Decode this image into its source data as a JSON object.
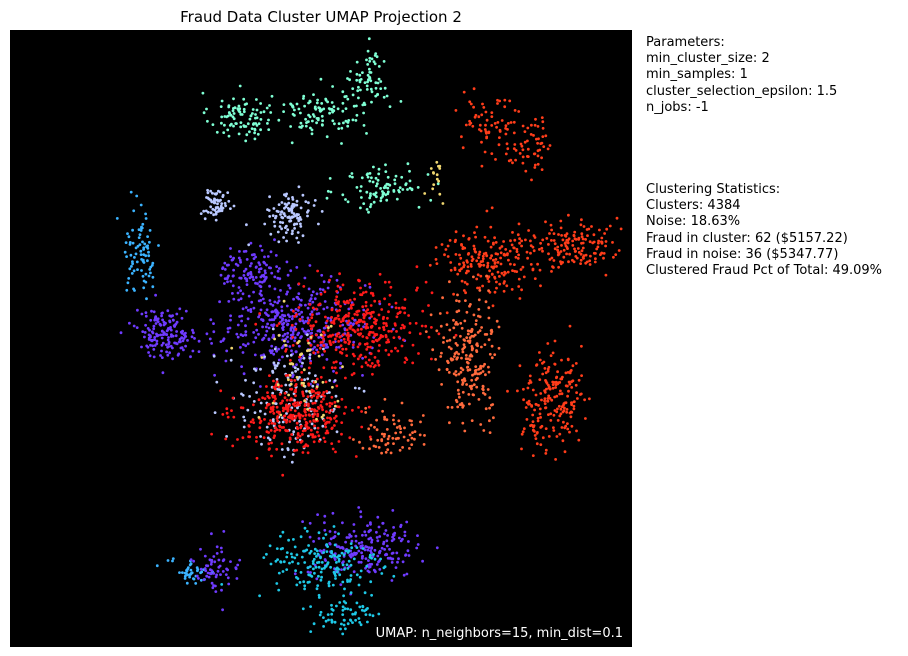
{
  "chart_data": {
    "type": "scatter",
    "title": "Fraud Data Cluster UMAP Projection 2",
    "xlabel": "",
    "ylabel": "",
    "axes_ticks": false,
    "background": "#000000",
    "colormap": "rainbow",
    "annotation": "UMAP: n_neighbors=15, min_dist=0.1",
    "groups": [
      {
        "color": "#7fffd4",
        "parts": [
          {
            "x": 0.37,
            "y": 0.86,
            "sx": 0.025,
            "sy": 0.02,
            "n": 90
          },
          {
            "x": 0.5,
            "y": 0.87,
            "sx": 0.04,
            "sy": 0.02,
            "n": 110
          },
          {
            "x": 0.58,
            "y": 0.92,
            "sx": 0.015,
            "sy": 0.025,
            "n": 60
          },
          {
            "x": 0.6,
            "y": 0.745,
            "sx": 0.035,
            "sy": 0.02,
            "n": 90
          }
        ]
      },
      {
        "color": "#3bb3ff",
        "parts": [
          {
            "x": 0.21,
            "y": 0.64,
            "sx": 0.015,
            "sy": 0.035,
            "n": 80
          },
          {
            "x": 0.29,
            "y": 0.12,
            "sx": 0.02,
            "sy": 0.01,
            "n": 40
          }
        ]
      },
      {
        "color": "#6f3bff",
        "parts": [
          {
            "x": 0.25,
            "y": 0.51,
            "sx": 0.025,
            "sy": 0.02,
            "n": 160
          },
          {
            "x": 0.39,
            "y": 0.61,
            "sx": 0.025,
            "sy": 0.02,
            "n": 110
          },
          {
            "x": 0.46,
            "y": 0.52,
            "sx": 0.06,
            "sy": 0.035,
            "n": 380
          },
          {
            "x": 0.57,
            "y": 0.16,
            "sx": 0.045,
            "sy": 0.025,
            "n": 210
          },
          {
            "x": 0.33,
            "y": 0.12,
            "sx": 0.02,
            "sy": 0.02,
            "n": 60
          }
        ]
      },
      {
        "color": "#b9c8ff",
        "parts": [
          {
            "x": 0.33,
            "y": 0.72,
            "sx": 0.012,
            "sy": 0.012,
            "n": 60
          },
          {
            "x": 0.45,
            "y": 0.7,
            "sx": 0.017,
            "sy": 0.017,
            "n": 110
          },
          {
            "x": 0.45,
            "y": 0.4,
            "sx": 0.045,
            "sy": 0.045,
            "n": 160
          }
        ]
      },
      {
        "color": "#1ec8e6",
        "parts": [
          {
            "x": 0.5,
            "y": 0.13,
            "sx": 0.05,
            "sy": 0.03,
            "n": 170
          },
          {
            "x": 0.54,
            "y": 0.05,
            "sx": 0.03,
            "sy": 0.015,
            "n": 60
          }
        ]
      },
      {
        "color": "#ff1a1a",
        "parts": [
          {
            "x": 0.46,
            "y": 0.375,
            "sx": 0.045,
            "sy": 0.03,
            "n": 330
          },
          {
            "x": 0.56,
            "y": 0.52,
            "sx": 0.05,
            "sy": 0.035,
            "n": 360
          }
        ]
      },
      {
        "color": "#ff3d1a",
        "parts": [
          {
            "x": 0.77,
            "y": 0.63,
            "sx": 0.04,
            "sy": 0.03,
            "n": 200
          },
          {
            "x": 0.91,
            "y": 0.65,
            "sx": 0.035,
            "sy": 0.02,
            "n": 140
          },
          {
            "x": 0.87,
            "y": 0.4,
            "sx": 0.025,
            "sy": 0.04,
            "n": 200
          },
          {
            "x": 0.78,
            "y": 0.85,
            "sx": 0.025,
            "sy": 0.025,
            "n": 70
          },
          {
            "x": 0.84,
            "y": 0.81,
            "sx": 0.02,
            "sy": 0.02,
            "n": 50
          }
        ]
      },
      {
        "color": "#ff6a3d",
        "parts": [
          {
            "x": 0.74,
            "y": 0.47,
            "sx": 0.025,
            "sy": 0.05,
            "n": 220
          },
          {
            "x": 0.61,
            "y": 0.35,
            "sx": 0.025,
            "sy": 0.02,
            "n": 70
          }
        ]
      },
      {
        "color": "#f0d770",
        "parts": [
          {
            "x": 0.47,
            "y": 0.45,
            "sx": 0.04,
            "sy": 0.04,
            "n": 50
          },
          {
            "x": 0.69,
            "y": 0.76,
            "sx": 0.01,
            "sy": 0.02,
            "n": 15
          }
        ]
      }
    ]
  },
  "parameters": {
    "heading": "Parameters:",
    "min_cluster_size": "min_cluster_size: 2",
    "min_samples": "min_samples: 1",
    "cluster_selection_epsilon": "cluster_selection_epsilon: 1.5",
    "n_jobs": "n_jobs: -1"
  },
  "statistics": {
    "heading": "Clustering Statistics:",
    "clusters": "Clusters: 4384",
    "noise": "Noise: 18.63%",
    "fraud_in_cluster": "Fraud in cluster: 62 ($5157.22)",
    "fraud_in_noise": "Fraud in noise: 36 ($5347.77)",
    "clustered_fraud_pct": "Clustered Fraud Pct of Total: 49.09%"
  }
}
